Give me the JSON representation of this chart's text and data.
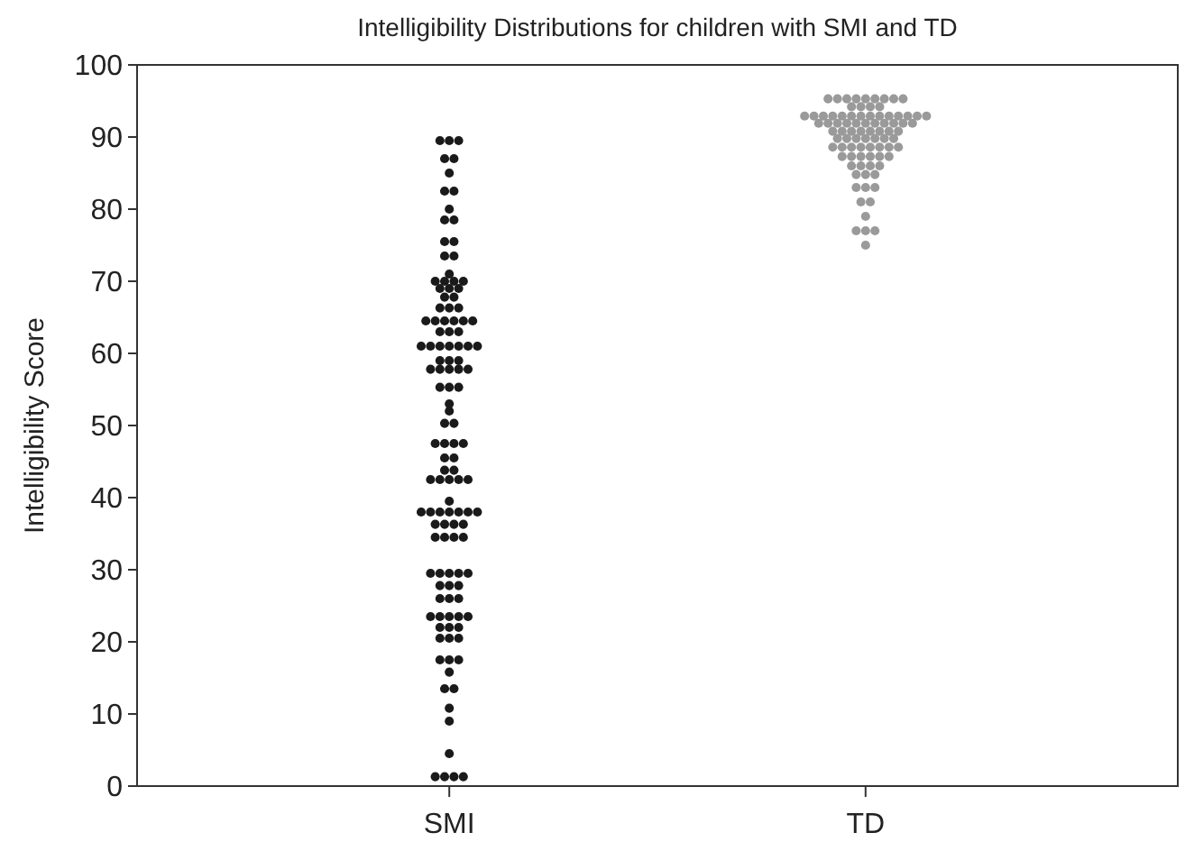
{
  "chart_data": {
    "type": "scatter",
    "title": "Intelligibility Distributions for children with SMI and TD",
    "ylabel": "Intelligibility Score",
    "categories": [
      "SMI",
      "TD"
    ],
    "ylim": [
      0,
      100
    ],
    "yticks": [
      0,
      10,
      20,
      30,
      40,
      50,
      60,
      70,
      80,
      90,
      100
    ],
    "marker": "circle",
    "series": [
      {
        "color": "#1a1a1a",
        "x": [
          "SMI",
          "SMI",
          "SMI",
          "SMI",
          "SMI",
          "SMI",
          "SMI",
          "SMI",
          "SMI",
          "SMI",
          "SMI",
          "SMI",
          "SMI",
          "SMI",
          "SMI",
          "SMI",
          "SMI",
          "SMI",
          "SMI",
          "SMI",
          "SMI",
          "SMI",
          "SMI",
          "SMI",
          "SMI",
          "SMI",
          "SMI",
          "SMI",
          "SMI",
          "SMI",
          "SMI",
          "SMI",
          "SMI",
          "SMI",
          "SMI",
          "SMI",
          "SMI",
          "SMI",
          "SMI",
          "SMI",
          "SMI",
          "SMI",
          "SMI",
          "SMI",
          "SMI",
          "SMI",
          "SMI",
          "SMI",
          "SMI",
          "SMI",
          "SMI",
          "SMI",
          "SMI",
          "SMI",
          "SMI",
          "SMI",
          "SMI",
          "SMI",
          "SMI",
          "SMI",
          "SMI",
          "SMI",
          "SMI",
          "SMI",
          "SMI",
          "SMI",
          "SMI",
          "SMI",
          "SMI",
          "SMI",
          "SMI",
          "SMI",
          "SMI",
          "SMI",
          "SMI",
          "SMI",
          "SMI",
          "SMI",
          "SMI",
          "SMI",
          "SMI",
          "SMI",
          "SMI",
          "SMI",
          "SMI",
          "SMI",
          "SMI",
          "SMI",
          "SMI",
          "SMI",
          "SMI",
          "SMI",
          "SMI",
          "SMI",
          "SMI",
          "SMI",
          "SMI",
          "SMI",
          "SMI",
          "SMI",
          "SMI",
          "SMI",
          "SMI",
          "SMI",
          "SMI",
          "SMI",
          "SMI",
          "SMI",
          "SMI",
          "SMI",
          "SMI",
          "SMI",
          "SMI",
          "SMI",
          "SMI",
          "SMI",
          "SMI",
          "SMI",
          "SMI",
          "SMI",
          "SMI",
          "SMI",
          "SMI"
        ],
        "values": [
          89.5,
          89.5,
          89.5,
          87,
          87,
          85,
          82.5,
          82.5,
          80,
          78.5,
          78.5,
          75.5,
          75.5,
          73.5,
          73.5,
          71,
          70,
          70,
          70,
          70,
          69,
          69,
          69,
          67.8,
          67.8,
          66.3,
          66.3,
          66.3,
          64.5,
          64.5,
          64.5,
          64.5,
          64.5,
          64.5,
          63,
          63,
          63,
          61,
          61,
          61,
          61,
          61,
          61,
          61,
          59,
          59,
          59,
          57.8,
          57.8,
          57.8,
          57.8,
          57.8,
          55.3,
          55.3,
          55.3,
          53,
          52,
          50.3,
          50.3,
          47.5,
          47.5,
          47.5,
          47.5,
          45.5,
          45.5,
          43.8,
          43.8,
          42.5,
          42.5,
          42.5,
          42.5,
          42.5,
          39.5,
          38,
          38,
          38,
          38,
          38,
          38,
          38,
          36.3,
          36.3,
          36.3,
          36.3,
          34.5,
          34.5,
          34.5,
          34.5,
          29.5,
          29.5,
          29.5,
          29.5,
          29.5,
          27.8,
          27.8,
          27.8,
          26,
          26,
          26,
          23.5,
          23.5,
          23.5,
          23.5,
          23.5,
          22,
          22,
          22,
          20.5,
          20.5,
          20.5,
          17.5,
          17.5,
          17.5,
          15.8,
          13.5,
          13.5,
          10.8,
          9,
          4.5,
          1.3,
          1.3,
          1.3,
          1.3
        ]
      },
      {
        "color": "#9a9a9a",
        "x": [
          "TD",
          "TD",
          "TD",
          "TD",
          "TD",
          "TD",
          "TD",
          "TD",
          "TD",
          "TD",
          "TD",
          "TD",
          "TD",
          "TD",
          "TD",
          "TD",
          "TD",
          "TD",
          "TD",
          "TD",
          "TD",
          "TD",
          "TD",
          "TD",
          "TD",
          "TD",
          "TD",
          "TD",
          "TD",
          "TD",
          "TD",
          "TD",
          "TD",
          "TD",
          "TD",
          "TD",
          "TD",
          "TD",
          "TD",
          "TD",
          "TD",
          "TD",
          "TD",
          "TD",
          "TD",
          "TD",
          "TD",
          "TD",
          "TD",
          "TD",
          "TD",
          "TD",
          "TD",
          "TD",
          "TD",
          "TD",
          "TD",
          "TD",
          "TD",
          "TD",
          "TD",
          "TD",
          "TD",
          "TD",
          "TD",
          "TD",
          "TD",
          "TD",
          "TD",
          "TD",
          "TD",
          "TD",
          "TD",
          "TD",
          "TD",
          "TD",
          "TD",
          "TD",
          "TD",
          "TD",
          "TD",
          "TD",
          "TD",
          "TD"
        ],
        "values": [
          95.3,
          95.3,
          95.3,
          95.3,
          95.3,
          95.3,
          95.3,
          95.3,
          95.3,
          94.2,
          94.2,
          94.2,
          94.2,
          92.9,
          92.9,
          92.9,
          92.9,
          92.9,
          92.9,
          92.9,
          92.9,
          92.9,
          92.9,
          92.9,
          92.9,
          92.9,
          92.9,
          91.9,
          91.9,
          91.9,
          91.9,
          91.9,
          91.9,
          91.9,
          91.9,
          91.9,
          91.9,
          91.9,
          90.8,
          90.8,
          90.8,
          90.8,
          90.8,
          90.8,
          90.8,
          90.8,
          89.8,
          89.8,
          89.8,
          89.8,
          89.8,
          89.8,
          89.8,
          88.6,
          88.6,
          88.6,
          88.6,
          88.6,
          88.6,
          88.6,
          88.6,
          87.3,
          87.3,
          87.3,
          87.3,
          87.3,
          87.3,
          86,
          86,
          86,
          86,
          84.8,
          84.8,
          84.8,
          83,
          83,
          83,
          81,
          81,
          79,
          77,
          77,
          77,
          75
        ]
      }
    ]
  }
}
